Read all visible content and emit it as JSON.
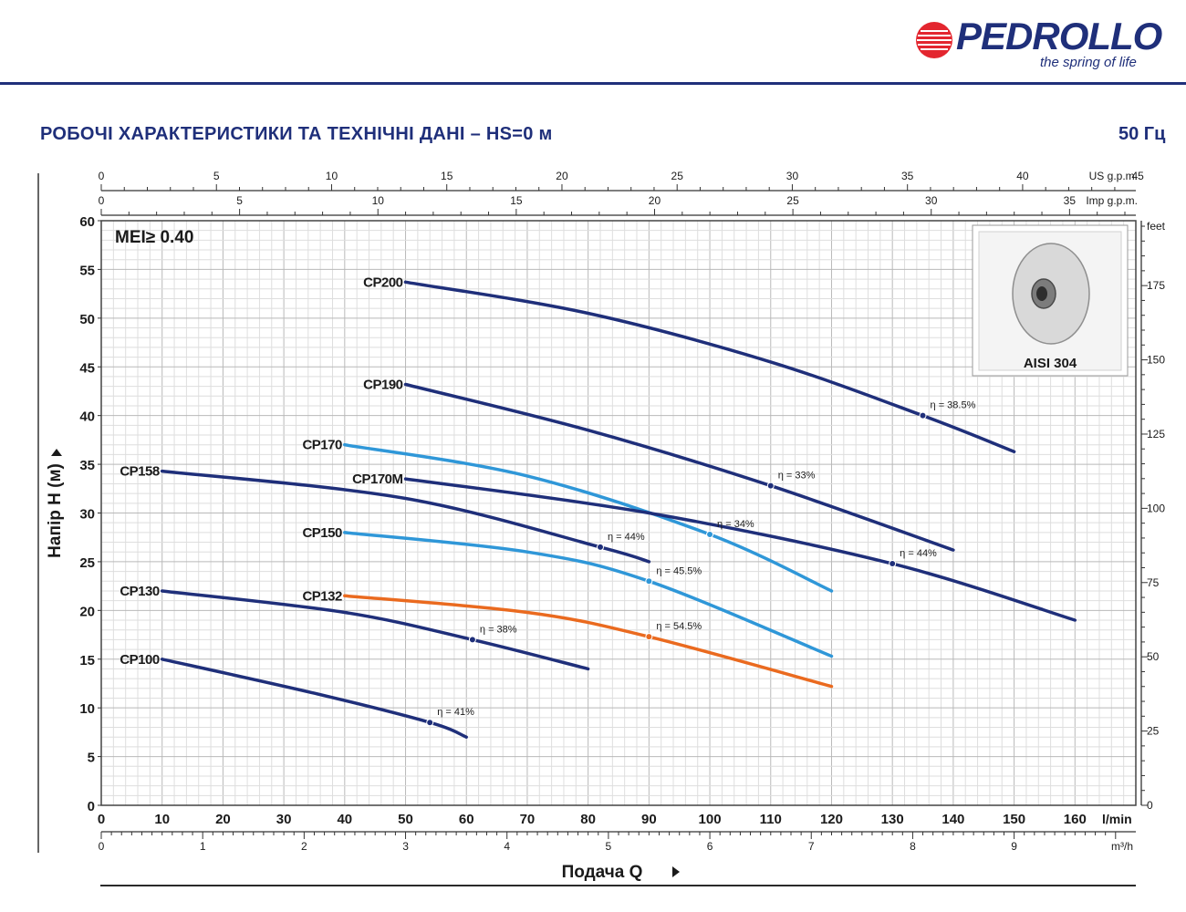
{
  "brand": {
    "name": "PEDROLLO",
    "tagline": "the spring of life"
  },
  "header": {
    "title": "РОБОЧІ ХАРАКТЕРИСТИКИ ТА ТЕХНІЧНІ ДАНІ  –  HS=0 м",
    "frequency": "50 Гц"
  },
  "colors": {
    "brand": "#1f2f7a",
    "dark_blue": "#1f2f7a",
    "light_blue": "#2f97d8",
    "orange": "#ea6a1f"
  },
  "inset": {
    "label": "AISI 304"
  },
  "chart_data": {
    "type": "line",
    "title": "",
    "mei_label": "MEI≥ 0.40",
    "xlabel": "Подача Q",
    "ylabel": "Напір H (м)",
    "xlim": [
      0,
      170
    ],
    "ylim": [
      0,
      60
    ],
    "grid": true,
    "x_ticks": [
      0,
      10,
      20,
      30,
      40,
      50,
      60,
      70,
      80,
      90,
      100,
      110,
      120,
      130,
      140,
      150,
      160
    ],
    "x_unit": "l/min",
    "y_ticks": [
      0,
      5,
      10,
      15,
      20,
      25,
      30,
      35,
      40,
      45,
      50,
      55,
      60
    ],
    "y_labels": [
      "0",
      "5",
      "10",
      "15",
      "20",
      "25",
      "30",
      "35",
      "40",
      "45",
      "50",
      "55",
      "60"
    ],
    "secondary_axes": {
      "us_gpm": {
        "unit": "US g.p.m.",
        "ticks": [
          0,
          5,
          10,
          15,
          20,
          25,
          30,
          35,
          40,
          45
        ],
        "per_unit_lmin": 3.785
      },
      "imp_gpm": {
        "unit": "Imp g.p.m.",
        "ticks": [
          0,
          5,
          10,
          15,
          20,
          25,
          30,
          35
        ],
        "per_unit_lmin": 4.546
      },
      "m3h": {
        "unit": "m³/h",
        "ticks": [
          0,
          1,
          2,
          3,
          4,
          5,
          6,
          7,
          8,
          9
        ],
        "per_unit_lmin": 16.667
      },
      "feet": {
        "unit": "feet",
        "ticks": [
          0,
          25,
          50,
          75,
          100,
          125,
          150,
          175
        ],
        "per_unit_m": 0.3048
      }
    },
    "series": [
      {
        "name": "CP200",
        "color": "#1f2f7a",
        "x": [
          50,
          80,
          110,
          135,
          150
        ],
        "y": [
          53.7,
          50.5,
          45.5,
          40.0,
          36.3
        ],
        "eff": {
          "label": "η = 38.5%",
          "x": 135,
          "y": 40.0
        }
      },
      {
        "name": "CP190",
        "color": "#1f2f7a",
        "x": [
          50,
          80,
          110,
          140
        ],
        "y": [
          43.2,
          38.5,
          32.8,
          26.2
        ],
        "eff": {
          "label": "η = 33%",
          "x": 110,
          "y": 32.8
        }
      },
      {
        "name": "CP170",
        "color": "#2f97d8",
        "x": [
          40,
          70,
          100,
          120
        ],
        "y": [
          37.0,
          33.8,
          27.8,
          22.0
        ],
        "eff": {
          "label": "η = 34%",
          "x": 100,
          "y": 27.8
        }
      },
      {
        "name": "CP170M",
        "color": "#1f2f7a",
        "x": [
          50,
          90,
          130,
          160
        ],
        "y": [
          33.5,
          30.0,
          24.8,
          19.0
        ],
        "eff": {
          "label": "η = 44%",
          "x": 130,
          "y": 24.8
        }
      },
      {
        "name": "CP158",
        "color": "#1f2f7a",
        "x": [
          10,
          50,
          82,
          90
        ],
        "y": [
          34.3,
          31.5,
          26.5,
          25.0
        ],
        "eff": {
          "label": "η = 44%",
          "x": 82,
          "y": 26.5
        }
      },
      {
        "name": "CP150",
        "color": "#2f97d8",
        "x": [
          40,
          70,
          90,
          120
        ],
        "y": [
          28.0,
          26.0,
          23.0,
          15.3
        ],
        "eff": {
          "label": "η = 45.5%",
          "x": 90,
          "y": 23.0
        }
      },
      {
        "name": "CP132",
        "color": "#ea6a1f",
        "x": [
          40,
          70,
          90,
          120
        ],
        "y": [
          21.5,
          19.8,
          17.3,
          12.2
        ],
        "eff": {
          "label": "η = 54.5%",
          "x": 90,
          "y": 17.3
        }
      },
      {
        "name": "CP130",
        "color": "#1f2f7a",
        "x": [
          10,
          40,
          61,
          80
        ],
        "y": [
          22.0,
          19.8,
          17.0,
          14.0
        ],
        "eff": {
          "label": "η = 38%",
          "x": 61,
          "y": 17.0
        }
      },
      {
        "name": "CP100",
        "color": "#1f2f7a",
        "x": [
          10,
          35,
          54,
          60
        ],
        "y": [
          15.0,
          11.5,
          8.5,
          7.0
        ],
        "eff": {
          "label": "η = 41%",
          "x": 54,
          "y": 8.5
        }
      }
    ]
  }
}
